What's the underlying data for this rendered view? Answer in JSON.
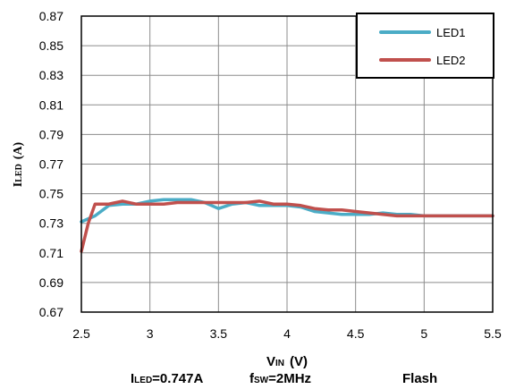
{
  "chart_data": {
    "type": "line",
    "title": "",
    "ylabel": {
      "main": "I",
      "sub": "LED",
      "unit": "(A)"
    },
    "xlabel": {
      "main": "V",
      "sub": "IN",
      "unit": "(V)"
    },
    "xlim": [
      2.5,
      5.5
    ],
    "ylim": [
      0.67,
      0.87
    ],
    "xticks": [
      2.5,
      3,
      3.5,
      4,
      4.5,
      5,
      5.5
    ],
    "yticks": [
      0.67,
      0.69,
      0.71,
      0.73,
      0.75,
      0.77,
      0.79,
      0.81,
      0.83,
      0.85,
      0.87
    ],
    "xtick_labels": [
      "2.5",
      "3",
      "3.5",
      "4",
      "4.5",
      "5",
      "5.5"
    ],
    "ytick_labels": [
      "0.67",
      "0.69",
      "0.71",
      "0.73",
      "0.75",
      "0.77",
      "0.79",
      "0.81",
      "0.83",
      "0.85",
      "0.87"
    ],
    "grid": true,
    "legend_position": "top-right",
    "series": [
      {
        "name": "LED1",
        "color": "#4bacc6",
        "x": [
          2.5,
          2.6,
          2.7,
          2.8,
          2.9,
          3.0,
          3.1,
          3.2,
          3.3,
          3.4,
          3.5,
          3.6,
          3.7,
          3.8,
          3.9,
          4.0,
          4.1,
          4.2,
          4.3,
          4.4,
          4.5,
          4.6,
          4.7,
          4.8,
          4.9,
          5.0,
          5.1,
          5.2,
          5.3,
          5.4,
          5.5
        ],
        "y": [
          0.731,
          0.735,
          0.742,
          0.743,
          0.743,
          0.745,
          0.746,
          0.746,
          0.746,
          0.744,
          0.74,
          0.743,
          0.744,
          0.742,
          0.742,
          0.742,
          0.741,
          0.738,
          0.737,
          0.736,
          0.736,
          0.736,
          0.737,
          0.736,
          0.736,
          0.735,
          0.735,
          0.735,
          0.735,
          0.735,
          0.735
        ]
      },
      {
        "name": "LED2",
        "color": "#c0504d",
        "x": [
          2.5,
          2.55,
          2.6,
          2.7,
          2.8,
          2.9,
          3.0,
          3.1,
          3.2,
          3.3,
          3.4,
          3.5,
          3.6,
          3.7,
          3.8,
          3.9,
          4.0,
          4.1,
          4.2,
          4.3,
          4.4,
          4.5,
          4.6,
          4.7,
          4.8,
          4.9,
          5.0,
          5.1,
          5.2,
          5.3,
          5.4,
          5.5
        ],
        "y": [
          0.711,
          0.73,
          0.743,
          0.743,
          0.745,
          0.743,
          0.743,
          0.743,
          0.744,
          0.744,
          0.744,
          0.744,
          0.744,
          0.744,
          0.745,
          0.743,
          0.743,
          0.742,
          0.74,
          0.739,
          0.739,
          0.738,
          0.737,
          0.736,
          0.735,
          0.735,
          0.735,
          0.735,
          0.735,
          0.735,
          0.735,
          0.735
        ]
      }
    ]
  },
  "conditions": {
    "iled": {
      "main": "I",
      "sub": "LED",
      "rest": "=0.747A"
    },
    "fsw": {
      "main": "f",
      "sub": "SW",
      "rest": "=2MHz"
    },
    "mode": "Flash"
  }
}
